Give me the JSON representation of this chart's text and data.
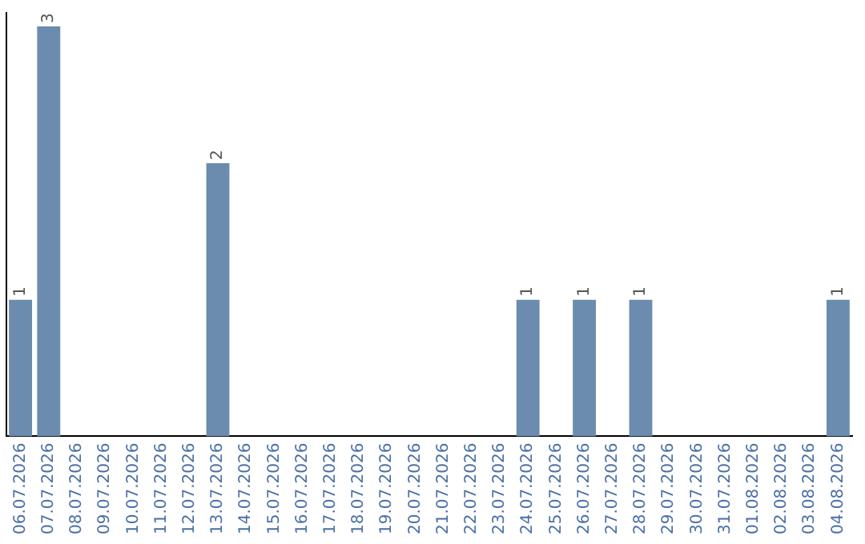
{
  "chart_data": {
    "type": "bar",
    "categories": [
      "06.07.2026",
      "07.07.2026",
      "08.07.2026",
      "09.07.2026",
      "10.07.2026",
      "11.07.2026",
      "12.07.2026",
      "13.07.2026",
      "14.07.2026",
      "15.07.2026",
      "16.07.2026",
      "17.07.2026",
      "18.07.2026",
      "19.07.2026",
      "20.07.2026",
      "21.07.2026",
      "22.07.2026",
      "23.07.2026",
      "24.07.2026",
      "25.07.2026",
      "26.07.2026",
      "27.07.2026",
      "28.07.2026",
      "29.07.2026",
      "30.07.2026",
      "31.07.2026",
      "01.08.2026",
      "02.08.2026",
      "03.08.2026",
      "04.08.2026"
    ],
    "values": [
      1,
      3,
      0,
      0,
      0,
      0,
      0,
      2,
      0,
      0,
      0,
      0,
      0,
      0,
      0,
      0,
      0,
      0,
      1,
      0,
      1,
      0,
      1,
      0,
      0,
      0,
      0,
      0,
      0,
      1
    ],
    "value_labels": [
      "1",
      "3",
      null,
      null,
      null,
      null,
      null,
      "2",
      null,
      null,
      null,
      null,
      null,
      null,
      null,
      null,
      null,
      null,
      "1",
      null,
      "1",
      null,
      "1",
      null,
      null,
      null,
      null,
      null,
      null,
      "1"
    ],
    "color": "#6b8cae",
    "ylim": [
      0,
      3.1
    ],
    "tick_labels": "x",
    "grid": false,
    "legend": false
  }
}
